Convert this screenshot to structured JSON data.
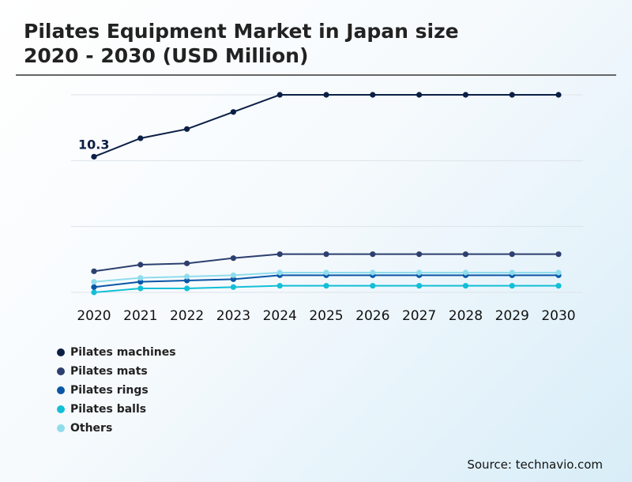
{
  "title_lines": [
    "Pilates Equipment Market in Japan size",
    "2020 - 2030 (USD Million)"
  ],
  "source": "Source: technavio.com",
  "chart_data": {
    "type": "line",
    "title": "Pilates Equipment Market in Japan size 2020 - 2030 (USD Million)",
    "xlabel": "",
    "ylabel": "",
    "x": [
      "2020",
      "2021",
      "2022",
      "2023",
      "2024",
      "2025",
      "2026",
      "2027",
      "2028",
      "2029",
      "2030"
    ],
    "ylim": [
      0,
      15
    ],
    "grid": true,
    "legend_position": "bottom-left",
    "annotations": [
      {
        "series": "Pilates machines",
        "x": "2020",
        "text": "10.3"
      }
    ],
    "series": [
      {
        "name": "Pilates machines",
        "color": "#0b1f45",
        "values": [
          10.3,
          11.7,
          12.4,
          13.7,
          15.0,
          15.0,
          15.0,
          15.0,
          15.0,
          15.0,
          15.0
        ]
      },
      {
        "name": "Pilates mats",
        "color": "#2c3f6e",
        "values": [
          1.6,
          2.1,
          2.2,
          2.6,
          2.9,
          2.9,
          2.9,
          2.9,
          2.9,
          2.9,
          2.9
        ]
      },
      {
        "name": "Pilates rings",
        "color": "#0a56a6",
        "values": [
          0.4,
          0.8,
          0.9,
          1.0,
          1.3,
          1.3,
          1.3,
          1.3,
          1.3,
          1.3,
          1.3
        ]
      },
      {
        "name": "Pilates balls",
        "color": "#12bfd6",
        "values": [
          0.0,
          0.3,
          0.3,
          0.4,
          0.5,
          0.5,
          0.5,
          0.5,
          0.5,
          0.5,
          0.5
        ]
      },
      {
        "name": "Others",
        "color": "#8fdcec",
        "values": [
          0.8,
          1.1,
          1.2,
          1.3,
          1.5,
          1.5,
          1.5,
          1.5,
          1.5,
          1.5,
          1.5
        ]
      }
    ]
  }
}
